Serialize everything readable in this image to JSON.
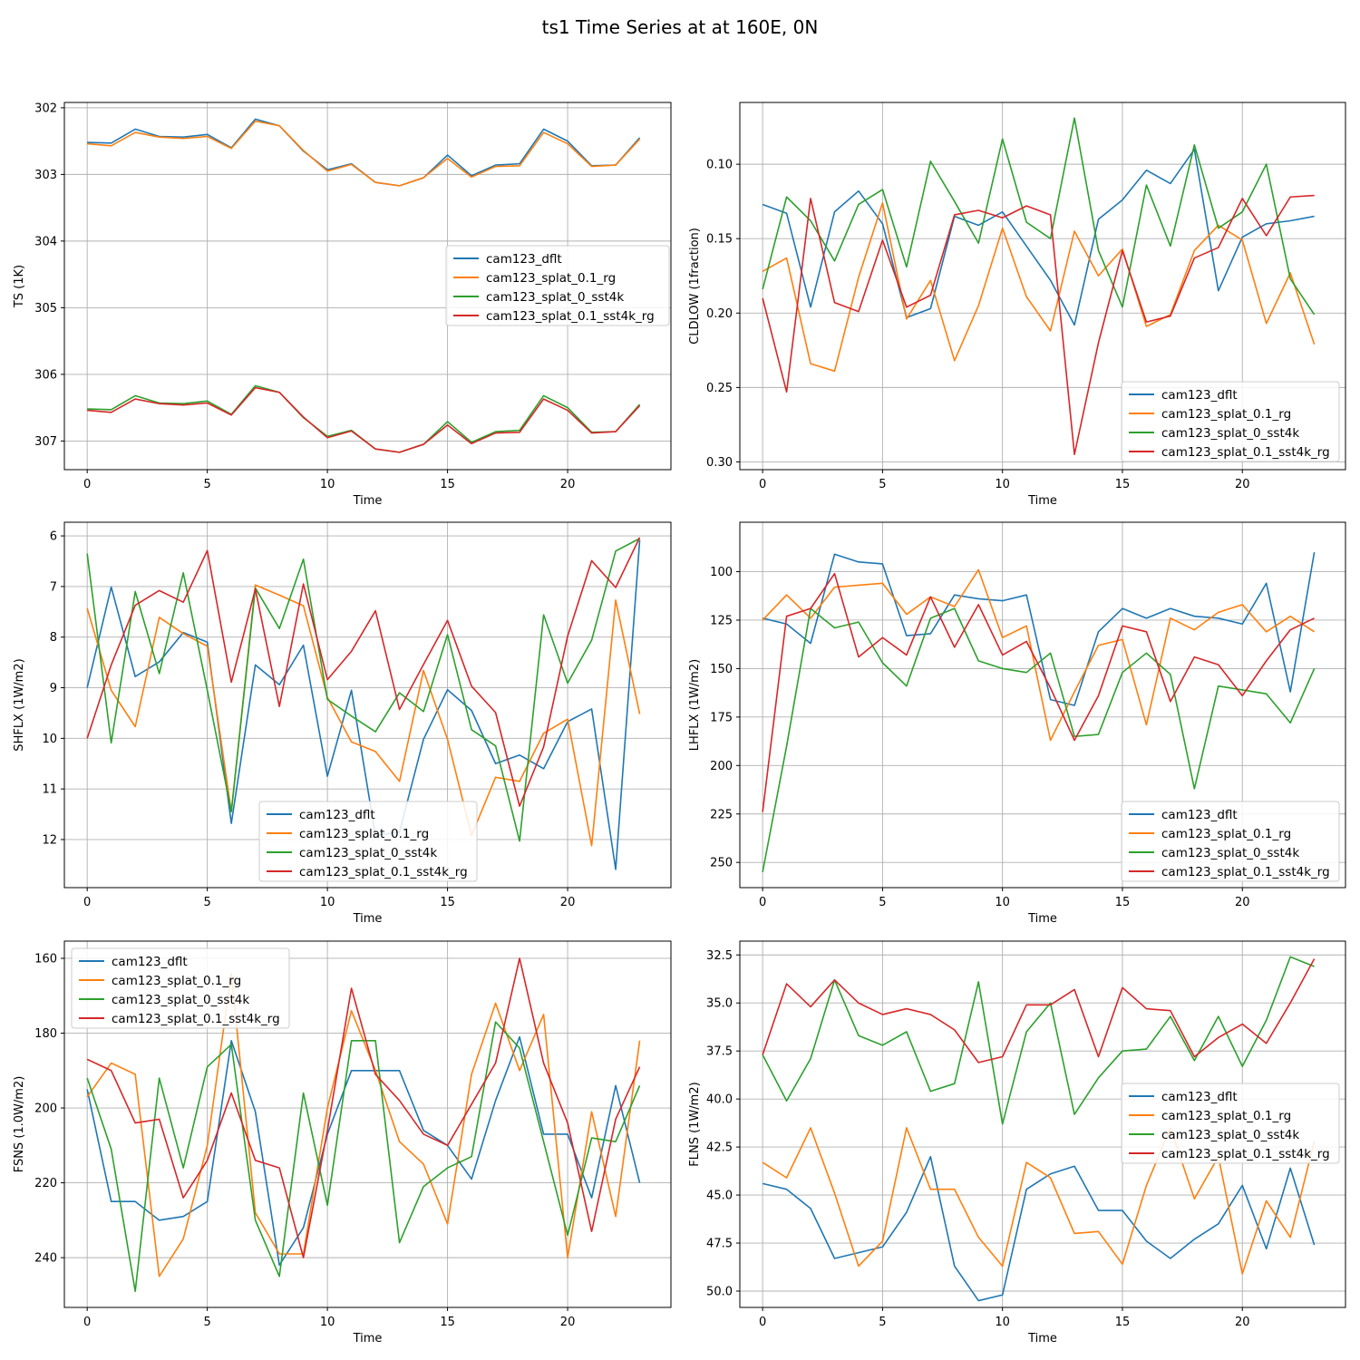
{
  "figure_title": "ts1 Time Series at at 160E, 0N",
  "colors": {
    "cam123_dflt": "#1f77b4",
    "cam123_splat_0.1_rg": "#ff7f0e",
    "cam123_splat_0_sst4k": "#2ca02c",
    "cam123_splat_0.1_sst4k_rg": "#d62728"
  },
  "chart_data": [
    {
      "type": "line",
      "title": "",
      "xlabel": "Time",
      "ylabel": "TS (1K)",
      "xlim": [
        -0.95,
        24.3
      ],
      "ylim": [
        307.43,
        301.92
      ],
      "inverted_y": true,
      "xticks": [
        0,
        5,
        10,
        15,
        20
      ],
      "yticks": [
        302,
        303,
        304,
        305,
        306,
        307
      ],
      "ytick_labels": [
        "302",
        "303",
        "304",
        "305",
        "306",
        "307"
      ],
      "legend_loc": "center-right",
      "x": [
        0,
        1,
        2,
        3,
        4,
        5,
        6,
        7,
        8,
        9,
        10,
        11,
        12,
        13,
        14,
        15,
        16,
        17,
        18,
        19,
        20,
        21,
        22,
        23
      ],
      "series": [
        {
          "name": "cam123_dflt",
          "values": [
            302.52,
            302.53,
            302.32,
            302.43,
            302.44,
            302.4,
            302.6,
            302.17,
            302.27,
            302.65,
            302.93,
            302.84,
            303.12,
            303.17,
            303.05,
            302.71,
            303.02,
            302.86,
            302.84,
            302.32,
            302.5,
            302.87,
            302.86,
            302.45
          ]
        },
        {
          "name": "cam123_splat_0.1_rg",
          "values": [
            302.54,
            302.57,
            302.37,
            302.44,
            302.46,
            302.43,
            302.61,
            302.2,
            302.27,
            302.64,
            302.95,
            302.85,
            303.12,
            303.17,
            303.05,
            302.76,
            303.04,
            302.88,
            302.87,
            302.37,
            302.54,
            302.88,
            302.86,
            302.47
          ]
        },
        {
          "name": "cam123_splat_0_sst4k",
          "values": [
            306.52,
            306.53,
            306.32,
            306.43,
            306.44,
            306.4,
            306.6,
            306.17,
            306.27,
            306.65,
            306.93,
            306.84,
            307.12,
            307.17,
            307.05,
            306.71,
            307.02,
            306.86,
            306.84,
            306.32,
            306.5,
            306.87,
            306.86,
            306.45
          ]
        },
        {
          "name": "cam123_splat_0.1_sst4k_rg",
          "values": [
            306.54,
            306.57,
            306.37,
            306.44,
            306.46,
            306.43,
            306.61,
            306.2,
            306.27,
            306.64,
            306.95,
            306.85,
            307.12,
            307.17,
            307.05,
            306.76,
            307.04,
            306.88,
            306.87,
            306.37,
            306.54,
            306.88,
            306.86,
            306.47
          ]
        }
      ]
    },
    {
      "type": "line",
      "title": "",
      "xlabel": "Time",
      "ylabel": "CLDLOW (1fraction)",
      "xlim": [
        -0.95,
        24.3
      ],
      "ylim": [
        0.3052,
        0.0585
      ],
      "inverted_y": true,
      "xticks": [
        0,
        5,
        10,
        15,
        20
      ],
      "yticks": [
        0.1,
        0.15,
        0.2,
        0.25,
        0.3
      ],
      "ytick_labels": [
        "0.10",
        "0.15",
        "0.20",
        "0.25",
        "0.30"
      ],
      "legend_loc": "lower-right",
      "x": [
        0,
        1,
        2,
        3,
        4,
        5,
        6,
        7,
        8,
        9,
        10,
        11,
        12,
        13,
        14,
        15,
        16,
        17,
        18,
        19,
        20,
        21,
        22,
        23
      ],
      "series": [
        {
          "name": "cam123_dflt",
          "values": [
            0.127,
            0.133,
            0.196,
            0.132,
            0.118,
            0.14,
            0.203,
            0.197,
            0.135,
            0.141,
            0.132,
            0.155,
            0.178,
            0.208,
            0.137,
            0.124,
            0.104,
            0.113,
            0.09,
            0.185,
            0.149,
            0.14,
            0.138,
            0.135
          ]
        },
        {
          "name": "cam123_splat_0.1_rg",
          "values": [
            0.172,
            0.163,
            0.234,
            0.239,
            0.176,
            0.126,
            0.204,
            0.178,
            0.232,
            0.195,
            0.143,
            0.189,
            0.212,
            0.145,
            0.175,
            0.157,
            0.209,
            0.201,
            0.158,
            0.141,
            0.151,
            0.207,
            0.173,
            0.221
          ]
        },
        {
          "name": "cam123_splat_0_sst4k",
          "values": [
            0.184,
            0.122,
            0.138,
            0.165,
            0.127,
            0.117,
            0.169,
            0.098,
            0.125,
            0.153,
            0.083,
            0.139,
            0.15,
            0.069,
            0.158,
            0.196,
            0.114,
            0.155,
            0.087,
            0.143,
            0.132,
            0.1,
            0.177,
            0.201
          ]
        },
        {
          "name": "cam123_splat_0.1_sst4k_rg",
          "values": [
            0.19,
            0.253,
            0.123,
            0.193,
            0.199,
            0.151,
            0.196,
            0.188,
            0.134,
            0.131,
            0.136,
            0.128,
            0.134,
            0.295,
            0.22,
            0.158,
            0.206,
            0.202,
            0.163,
            0.156,
            0.123,
            0.148,
            0.122,
            0.121
          ]
        }
      ]
    },
    {
      "type": "line",
      "title": "",
      "xlabel": "Time",
      "ylabel": "SHFLX (1W/m2)",
      "xlim": [
        -0.95,
        24.3
      ],
      "ylim": [
        12.95,
        5.73
      ],
      "inverted_y": true,
      "xticks": [
        0,
        5,
        10,
        15,
        20
      ],
      "yticks": [
        6,
        7,
        8,
        9,
        10,
        11,
        12
      ],
      "ytick_labels": [
        "6",
        "7",
        "8",
        "9",
        "10",
        "11",
        "12"
      ],
      "legend_loc": "lower-center",
      "x": [
        0,
        1,
        2,
        3,
        4,
        5,
        6,
        7,
        8,
        9,
        10,
        11,
        12,
        13,
        14,
        15,
        16,
        17,
        18,
        19,
        20,
        21,
        22,
        23
      ],
      "series": [
        {
          "name": "cam123_dflt",
          "values": [
            9.0,
            7.01,
            8.78,
            8.49,
            7.91,
            8.1,
            11.68,
            8.55,
            8.94,
            8.16,
            10.75,
            9.05,
            11.92,
            11.85,
            10.02,
            9.04,
            9.45,
            10.5,
            10.33,
            10.6,
            9.67,
            9.42,
            12.59,
            6.08
          ]
        },
        {
          "name": "cam123_splat_0.1_rg",
          "values": [
            7.43,
            9.05,
            9.77,
            7.61,
            7.93,
            8.18,
            11.45,
            6.97,
            7.17,
            7.38,
            9.19,
            10.07,
            10.26,
            10.85,
            8.66,
            10.02,
            11.92,
            10.77,
            10.85,
            9.9,
            9.62,
            12.12,
            7.27,
            9.52
          ]
        },
        {
          "name": "cam123_splat_0_sst4k",
          "values": [
            6.35,
            10.09,
            7.1,
            8.72,
            6.73,
            9.05,
            11.45,
            7.03,
            7.83,
            6.46,
            9.23,
            9.56,
            9.87,
            9.1,
            9.47,
            7.95,
            9.83,
            10.15,
            12.03,
            7.56,
            8.91,
            8.06,
            6.3,
            6.05
          ]
        },
        {
          "name": "cam123_splat_0.1_sst4k_rg",
          "values": [
            10.0,
            8.55,
            7.37,
            7.08,
            7.31,
            6.29,
            8.89,
            7.05,
            9.37,
            6.95,
            8.84,
            8.28,
            7.48,
            9.43,
            8.54,
            7.67,
            8.97,
            9.49,
            11.34,
            10.17,
            7.98,
            6.49,
            7.02,
            6.03
          ]
        }
      ]
    },
    {
      "type": "line",
      "title": "",
      "xlabel": "Time",
      "ylabel": "LHFLX (1W/m2)",
      "xlim": [
        -0.95,
        24.3
      ],
      "ylim": [
        263,
        74.5
      ],
      "inverted_y": true,
      "xticks": [
        0,
        5,
        10,
        15,
        20
      ],
      "yticks": [
        100,
        125,
        150,
        175,
        200,
        225,
        250
      ],
      "ytick_labels": [
        "100",
        "125",
        "150",
        "175",
        "200",
        "225",
        "250"
      ],
      "legend_loc": "lower-right",
      "x": [
        0,
        1,
        2,
        3,
        4,
        5,
        6,
        7,
        8,
        9,
        10,
        11,
        12,
        13,
        14,
        15,
        16,
        17,
        18,
        19,
        20,
        21,
        22,
        23
      ],
      "series": [
        {
          "name": "cam123_dflt",
          "values": [
            124,
            127,
            137,
            91,
            95,
            96,
            133,
            132,
            112,
            114,
            115,
            112,
            166,
            169,
            131,
            119,
            124,
            119,
            123,
            124,
            127,
            106,
            162,
            90
          ]
        },
        {
          "name": "cam123_splat_0.1_rg",
          "values": [
            125,
            112,
            124,
            108,
            107,
            106,
            122,
            113,
            118,
            99,
            134,
            128,
            187,
            162,
            138,
            135,
            179,
            124,
            130,
            121,
            117,
            131,
            123,
            131
          ]
        },
        {
          "name": "cam123_splat_0_sst4k",
          "values": [
            255,
            190,
            119,
            129,
            126,
            147,
            159,
            124,
            119,
            146,
            150,
            152,
            142,
            185,
            184,
            152,
            142,
            153,
            212,
            159,
            161,
            163,
            178,
            150
          ]
        },
        {
          "name": "cam123_splat_0.1_sst4k_rg",
          "values": [
            224,
            123,
            119,
            101,
            144,
            134,
            143,
            113,
            139,
            117,
            143,
            136,
            160,
            187,
            164,
            128,
            131,
            167,
            144,
            148,
            164,
            146,
            130,
            124
          ]
        }
      ]
    },
    {
      "type": "line",
      "title": "",
      "xlabel": "Time",
      "ylabel": "FSNS (1.0W/m2)",
      "xlim": [
        -0.95,
        24.3
      ],
      "ylim": [
        253.3,
        155.4
      ],
      "inverted_y": true,
      "xticks": [
        0,
        5,
        10,
        15,
        20
      ],
      "yticks": [
        160,
        180,
        200,
        220,
        240
      ],
      "ytick_labels": [
        "160",
        "180",
        "200",
        "220",
        "240"
      ],
      "legend_loc": "upper-left",
      "x": [
        0,
        1,
        2,
        3,
        4,
        5,
        6,
        7,
        8,
        9,
        10,
        11,
        12,
        13,
        14,
        15,
        16,
        17,
        18,
        19,
        20,
        21,
        22,
        23
      ],
      "series": [
        {
          "name": "cam123_dflt",
          "values": [
            195,
            225,
            225,
            230,
            229,
            225,
            182,
            201,
            242,
            232,
            207,
            190,
            190,
            190,
            206,
            210,
            219,
            198,
            181,
            207,
            207,
            224,
            194,
            220
          ]
        },
        {
          "name": "cam123_splat_0.1_rg",
          "values": [
            197,
            188,
            191,
            245,
            235,
            210,
            164,
            228,
            239,
            239,
            200,
            174,
            190,
            209,
            215,
            231,
            191,
            172,
            190,
            175,
            240,
            201,
            229,
            182
          ]
        },
        {
          "name": "cam123_splat_0_sst4k",
          "values": [
            192,
            211,
            249,
            192,
            216,
            189,
            183,
            230,
            245,
            196,
            226,
            182,
            182,
            236,
            221,
            216,
            213,
            177,
            184,
            209,
            234,
            208,
            209,
            194
          ]
        },
        {
          "name": "cam123_splat_0.1_sst4k_rg",
          "values": [
            187,
            190,
            204,
            203,
            224,
            214,
            196,
            214,
            216,
            240,
            206,
            168,
            191,
            198,
            207,
            210,
            199,
            188,
            160,
            188,
            204,
            233,
            203,
            189
          ]
        }
      ]
    },
    {
      "type": "line",
      "title": "",
      "xlabel": "Time",
      "ylabel": "FLNS (1W/m2)",
      "xlim": [
        -0.95,
        24.3
      ],
      "ylim": [
        50.85,
        31.78
      ],
      "inverted_y": true,
      "xticks": [
        0,
        5,
        10,
        15,
        20
      ],
      "yticks": [
        32.5,
        35.0,
        37.5,
        40.0,
        42.5,
        45.0,
        47.5,
        50.0
      ],
      "ytick_labels": [
        "32.5",
        "35.0",
        "37.5",
        "40.0",
        "42.5",
        "45.0",
        "47.5",
        "50.0"
      ],
      "legend_loc": "center-right",
      "x": [
        0,
        1,
        2,
        3,
        4,
        5,
        6,
        7,
        8,
        9,
        10,
        11,
        12,
        13,
        14,
        15,
        16,
        17,
        18,
        19,
        20,
        21,
        22,
        23
      ],
      "series": [
        {
          "name": "cam123_dflt",
          "values": [
            44.4,
            44.7,
            45.7,
            48.3,
            48.0,
            47.7,
            45.9,
            43.0,
            48.7,
            50.5,
            50.2,
            44.7,
            43.9,
            43.5,
            45.8,
            45.8,
            47.4,
            48.3,
            47.3,
            46.5,
            44.5,
            47.8,
            43.6,
            47.6
          ]
        },
        {
          "name": "cam123_splat_0.1_rg",
          "values": [
            43.3,
            44.1,
            41.5,
            44.9,
            48.7,
            47.4,
            41.5,
            44.7,
            44.7,
            47.2,
            48.7,
            43.3,
            44.1,
            47.0,
            46.9,
            48.6,
            44.5,
            41.5,
            45.2,
            43.0,
            49.1,
            45.3,
            47.2,
            42.2
          ]
        },
        {
          "name": "cam123_splat_0_sst4k",
          "values": [
            37.7,
            40.1,
            37.9,
            33.8,
            36.7,
            37.2,
            36.5,
            39.6,
            39.2,
            33.9,
            41.3,
            36.5,
            35.0,
            40.8,
            38.9,
            37.5,
            37.4,
            35.7,
            38.0,
            35.7,
            38.3,
            35.9,
            32.6,
            33.1
          ]
        },
        {
          "name": "cam123_splat_0.1_sst4k_rg",
          "values": [
            37.7,
            34.0,
            35.2,
            33.8,
            35.0,
            35.6,
            35.3,
            35.6,
            36.4,
            38.1,
            37.8,
            35.1,
            35.1,
            34.3,
            37.8,
            34.2,
            35.3,
            35.4,
            37.8,
            36.8,
            36.1,
            37.1,
            35.0,
            32.7
          ]
        }
      ]
    }
  ]
}
